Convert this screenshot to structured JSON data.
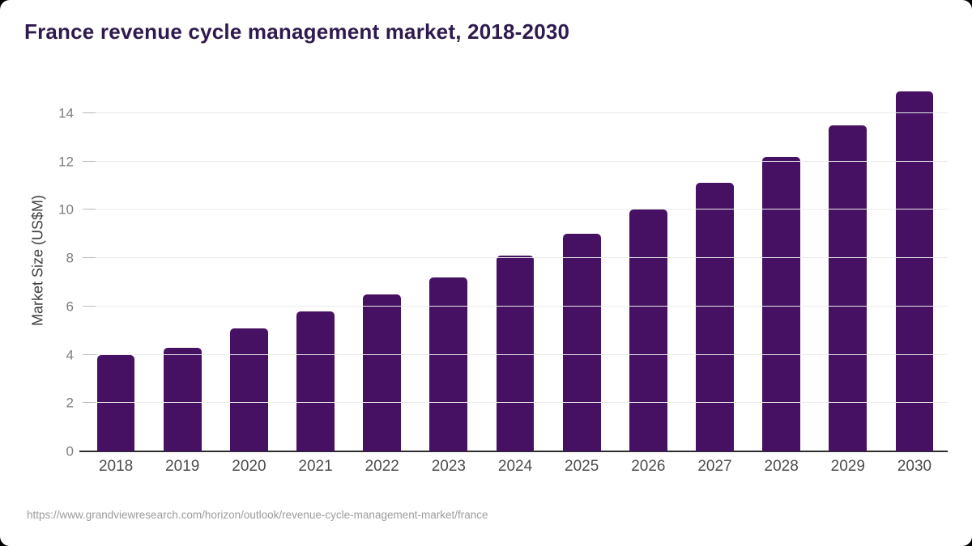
{
  "title": "France revenue cycle management market, 2018-2030",
  "source_url": "https://www.grandviewresearch.com/horizon/outlook/revenue-cycle-management-market/france",
  "colors": {
    "bar": "#461163",
    "title_text": "#2f1a4f",
    "axis_line": "#2d2d2d",
    "gridline": "#eaeaea",
    "y_tick_text": "#7d7d7d",
    "x_tick_text": "#4d4d4d",
    "source_text": "#9c9c9c"
  },
  "chart_data": {
    "type": "bar",
    "title": "France revenue cycle management market, 2018-2030",
    "categories": [
      "2018",
      "2019",
      "2020",
      "2021",
      "2022",
      "2023",
      "2024",
      "2025",
      "2026",
      "2027",
      "2028",
      "2029",
      "2030"
    ],
    "values": [
      4.0,
      4.3,
      5.1,
      5.8,
      6.5,
      7.2,
      8.1,
      9.0,
      10.0,
      11.1,
      12.2,
      13.5,
      14.9
    ],
    "xlabel": "",
    "ylabel": "Market Size (US$M)",
    "ylim": [
      0,
      15.4
    ],
    "yticks": [
      0,
      2,
      4,
      6,
      8,
      10,
      12,
      14
    ],
    "grid": true,
    "legend": false
  }
}
